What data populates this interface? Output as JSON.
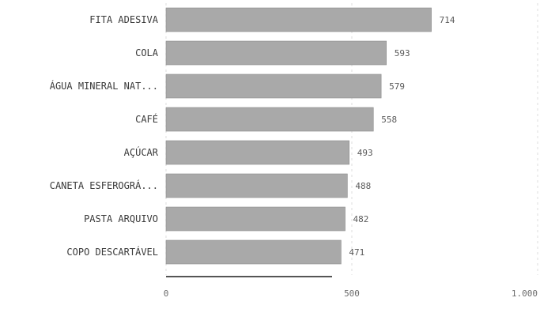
{
  "chart_data": {
    "type": "bar",
    "orientation": "horizontal",
    "categories": [
      "FITA ADESIVA",
      "COLA",
      "ÁGUA MINERAL NAT...",
      "CAFÉ",
      "AÇÚCAR",
      "CANETA ESFEROGRÁ...",
      "PASTA ARQUIVO",
      "COPO DESCARTÁVEL"
    ],
    "values": [
      714,
      593,
      579,
      558,
      493,
      488,
      482,
      471
    ],
    "value_labels": [
      "714",
      "593",
      "579",
      "558",
      "493",
      "488",
      "482",
      "471"
    ],
    "xlim": [
      0,
      1000
    ],
    "x_ticks": [
      0,
      500,
      1000
    ],
    "x_tick_labels": [
      "0",
      "500",
      "1.000"
    ],
    "grid": true,
    "bar_color": "#a9a9a9",
    "title": "",
    "xlabel": "",
    "ylabel": ""
  }
}
